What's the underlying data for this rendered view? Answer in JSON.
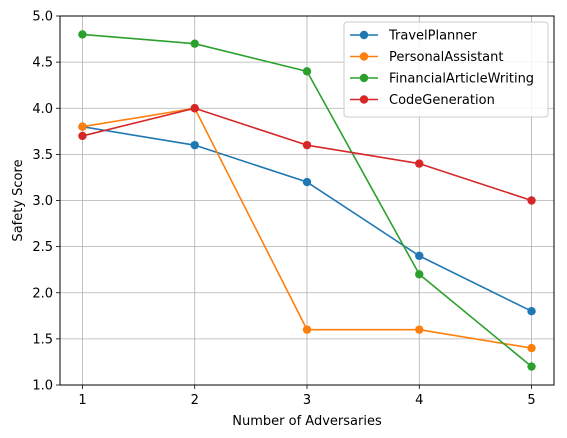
{
  "chart_data": {
    "type": "line",
    "title": "",
    "xlabel": "Number of Adversaries",
    "ylabel": "Safety Score",
    "x": [
      1,
      2,
      3,
      4,
      5
    ],
    "x_tick_labels": [
      "1",
      "2",
      "3",
      "4",
      "5"
    ],
    "xlim": [
      0.8,
      5.2
    ],
    "ylim": [
      1.0,
      5.0
    ],
    "y_ticks": [
      1.0,
      1.5,
      2.0,
      2.5,
      3.0,
      3.5,
      4.0,
      4.5,
      5.0
    ],
    "y_tick_labels": [
      "1.0",
      "1.5",
      "2.0",
      "2.5",
      "3.0",
      "3.5",
      "4.0",
      "4.5",
      "5.0"
    ],
    "grid": true,
    "legend_position": "top-right",
    "series": [
      {
        "name": "TravelPlanner",
        "color": "#1f77b4",
        "values": [
          3.8,
          3.6,
          3.2,
          2.4,
          1.8
        ]
      },
      {
        "name": "PersonalAssistant",
        "color": "#ff7f0e",
        "values": [
          3.8,
          4.0,
          1.6,
          1.6,
          1.4
        ]
      },
      {
        "name": "FinancialArticleWriting",
        "color": "#2ca02c",
        "values": [
          4.8,
          4.7,
          4.4,
          2.2,
          1.2
        ]
      },
      {
        "name": "CodeGeneration",
        "color": "#d62728",
        "values": [
          3.7,
          4.0,
          3.6,
          3.4,
          3.0
        ]
      }
    ]
  }
}
